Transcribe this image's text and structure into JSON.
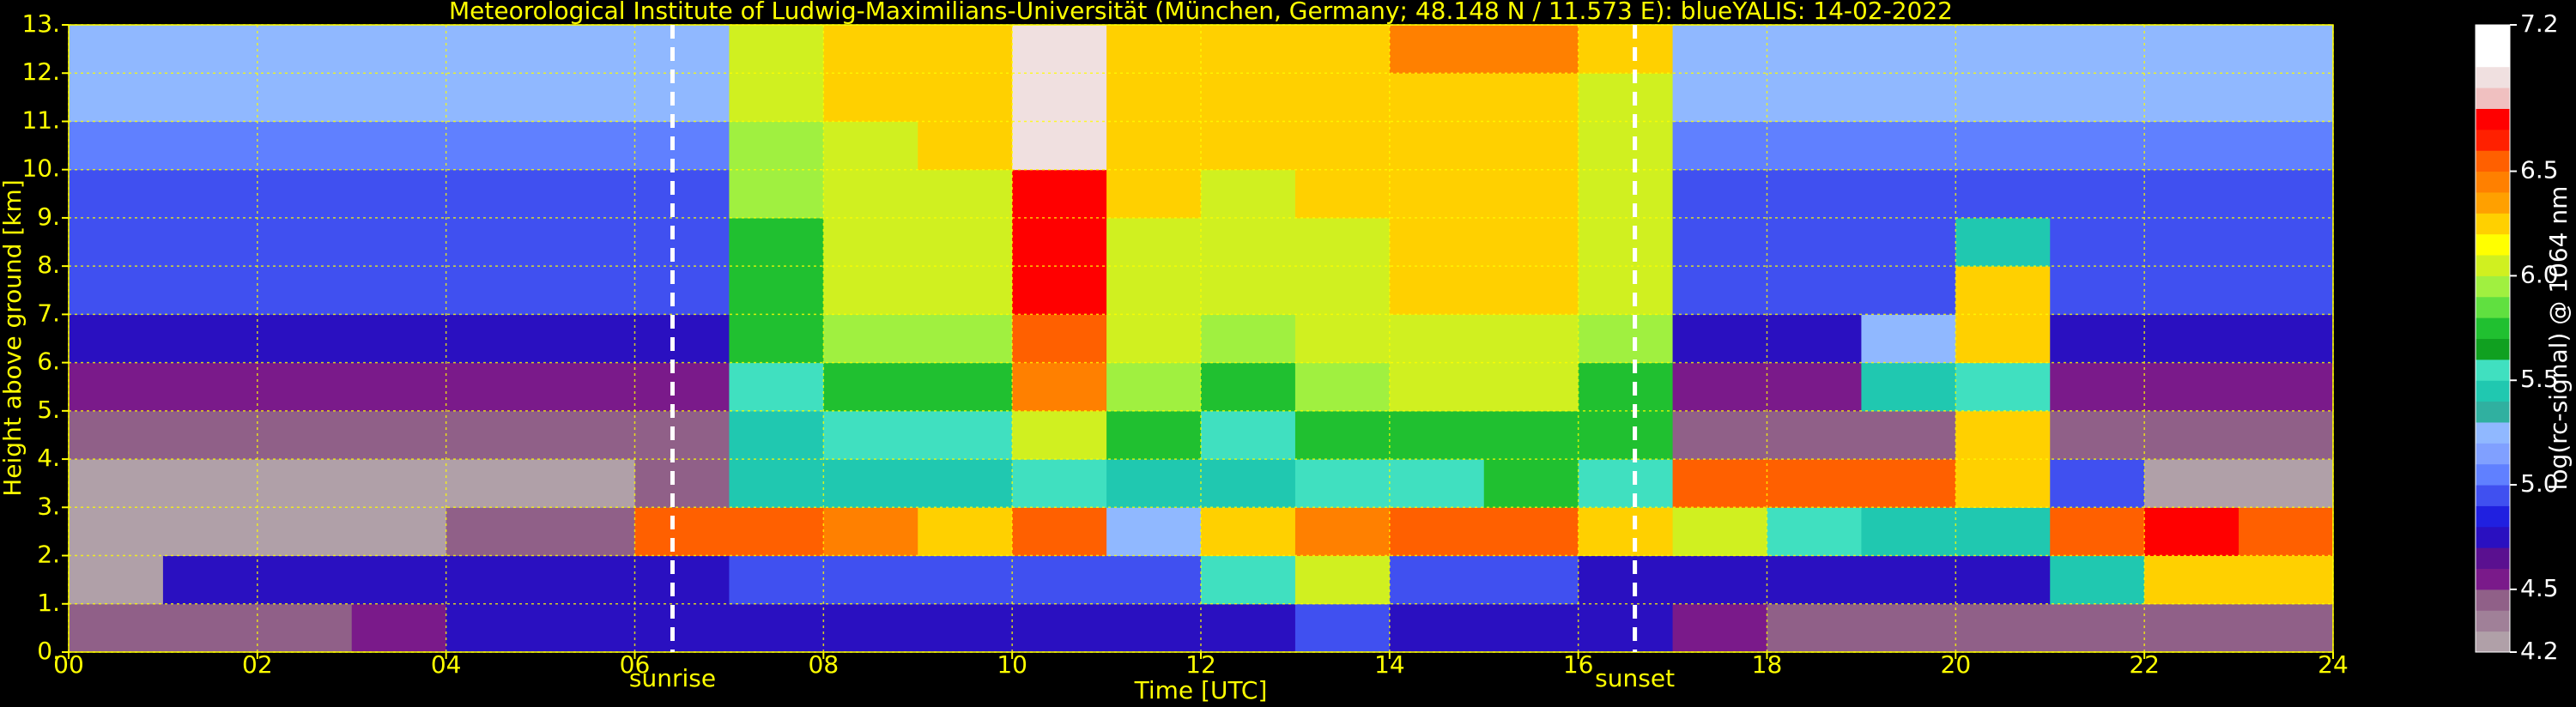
{
  "chart_data": {
    "type": "heatmap",
    "title": "Meteorological Institute of Ludwig-Maximilians-Universität (München, Germany; 48.148 N / 11.573 E):     blueYALIS: 14-02-2022",
    "x_label": "Time [UTC]",
    "y_label": "Height above ground [km]",
    "xlim": [
      0,
      24
    ],
    "ylim": [
      0,
      13
    ],
    "xticks": [
      {
        "value": 0,
        "label": "00"
      },
      {
        "value": 2,
        "label": "02"
      },
      {
        "value": 4,
        "label": "04"
      },
      {
        "value": 6,
        "label": "06"
      },
      {
        "value": 8,
        "label": "08"
      },
      10,
      12,
      14,
      16,
      18,
      20,
      22,
      24
    ],
    "yticks": [
      {
        "value": 0,
        "label": "0."
      },
      {
        "value": 1,
        "label": "1."
      },
      {
        "value": 2,
        "label": "2."
      },
      {
        "value": 3,
        "label": "3."
      },
      {
        "value": 4,
        "label": "4."
      },
      {
        "value": 5,
        "label": "5."
      },
      {
        "value": 6,
        "label": "6."
      },
      {
        "value": 7,
        "label": "7."
      },
      {
        "value": 8,
        "label": "8."
      },
      {
        "value": 9,
        "label": "9."
      },
      {
        "value": 10,
        "label": "10."
      },
      {
        "value": 11,
        "label": "11."
      },
      {
        "value": 12,
        "label": "12."
      },
      {
        "value": 13,
        "label": "13."
      }
    ],
    "grid": true,
    "grid_color": "#ffff00",
    "text_color": "#ffff00",
    "annotations": [
      {
        "x": 6.4,
        "label": "sunrise"
      },
      {
        "x": 16.6,
        "label": "sunset"
      }
    ],
    "x_bins": [
      0,
      1,
      2,
      3,
      4,
      5,
      6,
      7,
      8,
      9,
      10,
      11,
      12,
      13,
      14,
      15,
      16,
      17,
      18,
      19,
      20,
      21,
      22,
      23,
      24
    ],
    "y_bins": [
      0,
      1,
      2,
      3,
      4,
      5,
      6,
      7,
      8,
      9,
      10,
      11,
      12,
      13
    ],
    "z": [
      [
        4.4,
        4.4,
        4.5,
        4.6,
        4.7,
        4.7,
        4.8,
        4.8,
        4.8,
        4.8,
        4.8,
        4.8,
        4.8,
        4.9,
        4.8,
        4.8,
        4.7,
        4.6,
        4.5,
        4.4,
        4.4,
        4.5,
        4.5,
        4.5
      ],
      [
        4.3,
        4.7,
        4.8,
        4.8,
        4.8,
        4.7,
        4.8,
        4.9,
        4.9,
        4.9,
        5.0,
        5.0,
        5.6,
        6.0,
        5.0,
        4.9,
        4.8,
        4.8,
        4.7,
        4.7,
        4.8,
        5.5,
        6.3,
        6.2
      ],
      [
        4.2,
        4.2,
        4.3,
        4.3,
        4.4,
        4.5,
        6.5,
        6.6,
        6.4,
        6.2,
        6.5,
        5.3,
        6.3,
        6.4,
        6.5,
        6.6,
        6.3,
        6.0,
        5.6,
        5.5,
        5.4,
        6.6,
        6.8,
        6.6
      ],
      [
        4.2,
        4.2,
        4.2,
        4.2,
        4.2,
        4.2,
        4.4,
        5.4,
        5.5,
        5.5,
        5.6,
        5.5,
        5.5,
        5.6,
        5.6,
        5.7,
        5.6,
        6.5,
        6.5,
        6.5,
        6.3,
        5.0,
        4.3,
        4.3
      ],
      [
        4.4,
        4.4,
        4.4,
        4.4,
        4.4,
        4.4,
        4.5,
        5.5,
        5.6,
        5.6,
        6.0,
        5.7,
        5.6,
        5.7,
        5.8,
        5.8,
        5.7,
        4.4,
        4.4,
        4.4,
        6.2,
        4.5,
        4.4,
        4.4
      ],
      [
        4.6,
        4.6,
        4.6,
        4.6,
        4.6,
        4.6,
        4.6,
        5.6,
        5.8,
        5.8,
        6.4,
        5.9,
        5.8,
        5.9,
        6.0,
        6.0,
        5.8,
        4.6,
        4.6,
        5.4,
        5.6,
        4.6,
        4.6,
        4.6
      ],
      [
        4.8,
        4.8,
        4.8,
        4.8,
        4.8,
        4.8,
        4.8,
        5.7,
        5.9,
        5.9,
        6.6,
        6.0,
        5.9,
        6.0,
        6.1,
        6.1,
        5.9,
        4.8,
        4.8,
        5.2,
        6.3,
        4.8,
        4.8,
        4.8
      ],
      [
        4.9,
        4.9,
        4.9,
        4.9,
        4.9,
        4.9,
        4.9,
        5.8,
        6.0,
        6.0,
        6.7,
        6.1,
        6.0,
        6.1,
        6.2,
        6.2,
        6.0,
        4.9,
        4.9,
        4.9,
        6.3,
        4.9,
        4.9,
        4.9
      ],
      [
        5.0,
        5.0,
        5.0,
        5.0,
        5.0,
        5.0,
        5.0,
        5.8,
        6.0,
        6.1,
        6.8,
        6.1,
        6.1,
        6.1,
        6.2,
        6.2,
        6.0,
        5.0,
        5.0,
        5.0,
        5.5,
        5.0,
        5.0,
        5.0
      ],
      [
        5.0,
        5.0,
        5.0,
        5.0,
        5.0,
        5.0,
        5.0,
        5.9,
        6.1,
        6.1,
        6.8,
        6.2,
        6.1,
        6.2,
        6.3,
        6.3,
        6.0,
        5.0,
        5.0,
        5.0,
        5.0,
        5.0,
        5.0,
        5.0
      ],
      [
        5.1,
        5.1,
        5.1,
        5.1,
        5.1,
        5.1,
        5.1,
        5.9,
        6.1,
        6.2,
        6.9,
        6.2,
        6.2,
        6.2,
        6.3,
        6.3,
        6.1,
        5.1,
        5.1,
        5.1,
        5.1,
        5.1,
        5.1,
        5.1
      ],
      [
        5.2,
        5.2,
        5.2,
        5.2,
        5.2,
        5.2,
        5.2,
        6.0,
        6.2,
        6.2,
        6.9,
        6.3,
        6.2,
        6.3,
        6.3,
        6.3,
        6.1,
        5.2,
        5.2,
        5.2,
        5.2,
        5.2,
        5.2,
        5.2
      ],
      [
        5.3,
        5.3,
        5.3,
        5.3,
        5.3,
        5.3,
        5.3,
        6.0,
        6.2,
        6.3,
        7.0,
        6.3,
        6.3,
        6.3,
        6.4,
        6.4,
        6.2,
        5.3,
        5.3,
        5.3,
        5.3,
        5.3,
        5.3,
        5.3
      ]
    ],
    "colorbar": {
      "label": "log(rc-signal) @ 1064 nm",
      "lim": [
        4.2,
        7.2
      ],
      "ticks": [
        4.2,
        4.5,
        {
          "value": 5,
          "label": "5.0"
        },
        5.5,
        {
          "value": 6,
          "label": "6.0"
        },
        6.5,
        7.2
      ],
      "tick_color": "#ffffff",
      "colors": [
        "#b0a0a8",
        "#a08098",
        "#906088",
        "#7a1a8a",
        "#5a1090",
        "#2a10c0",
        "#2020e0",
        "#4050f0",
        "#6080ff",
        "#80a0ff",
        "#90b8ff",
        "#30b0a0",
        "#20c8b0",
        "#40e0c0",
        "#10a020",
        "#20c030",
        "#60e040",
        "#a0f040",
        "#d0f020",
        "#ffff00",
        "#ffd000",
        "#ffa000",
        "#ff8000",
        "#ff6000",
        "#ff2000",
        "#ff0000",
        "#f0c0c0",
        "#f0e0e0",
        "#ffffff",
        "#ffffff"
      ]
    }
  }
}
